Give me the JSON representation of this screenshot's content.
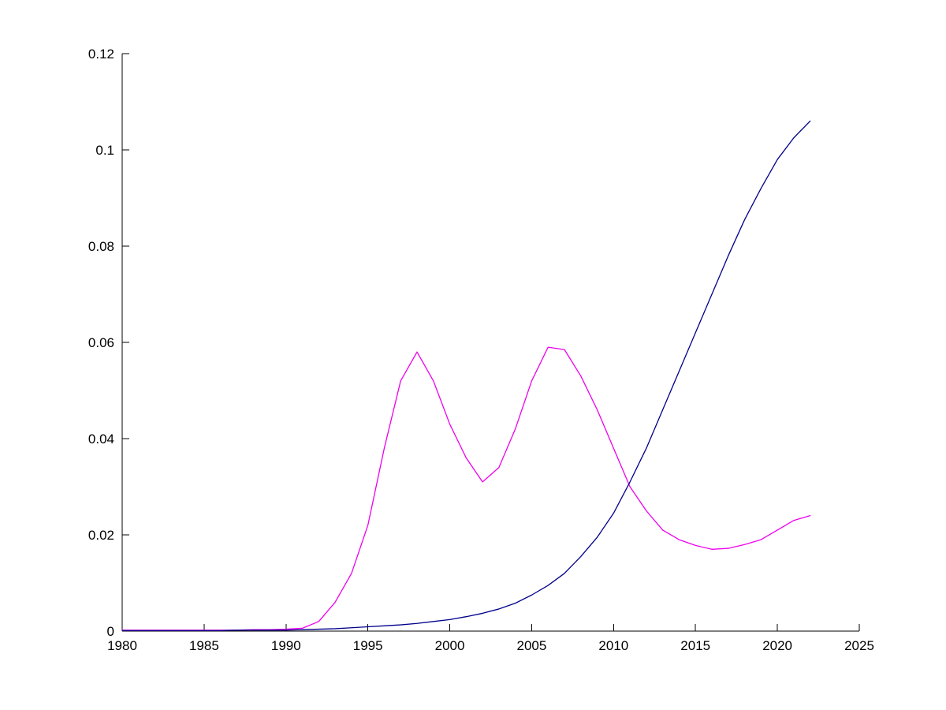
{
  "chart_data": {
    "type": "line",
    "title": "",
    "xlabel": "",
    "ylabel": "",
    "grid": false,
    "legend": "none",
    "xlim": [
      1980,
      2025
    ],
    "ylim": [
      0,
      0.12
    ],
    "xticks": [
      1980,
      1985,
      1990,
      1995,
      2000,
      2005,
      2010,
      2015,
      2020,
      2025
    ],
    "xtick_labels": [
      "1980",
      "1985",
      "1990",
      "1995",
      "2000",
      "2005",
      "2010",
      "2015",
      "2020",
      "2025"
    ],
    "yticks": [
      0,
      0.02,
      0.04,
      0.06,
      0.08,
      0.1,
      0.12
    ],
    "ytick_labels": [
      "0",
      "0.02",
      "0.04",
      "0.06",
      "0.08",
      "0.1",
      "0.12"
    ],
    "x": [
      1980,
      1981,
      1982,
      1983,
      1984,
      1985,
      1986,
      1987,
      1988,
      1989,
      1990,
      1991,
      1992,
      1993,
      1994,
      1995,
      1996,
      1997,
      1998,
      1999,
      2000,
      2001,
      2002,
      2003,
      2004,
      2005,
      2006,
      2007,
      2008,
      2009,
      2010,
      2011,
      2012,
      2013,
      2014,
      2015,
      2016,
      2017,
      2018,
      2019,
      2020,
      2021,
      2022
    ],
    "series": [
      {
        "name": "magenta-line",
        "color": "#ee00ee",
        "values": [
          0.0002,
          0.0002,
          0.0002,
          0.0002,
          0.0002,
          0.0002,
          0.0002,
          0.0002,
          0.0003,
          0.0003,
          0.0004,
          0.0006,
          0.002,
          0.006,
          0.012,
          0.022,
          0.038,
          0.052,
          0.058,
          0.052,
          0.043,
          0.036,
          0.031,
          0.034,
          0.042,
          0.052,
          0.059,
          0.0585,
          0.053,
          0.046,
          0.038,
          0.03,
          0.025,
          0.021,
          0.019,
          0.0178,
          0.017,
          0.0172,
          0.018,
          0.019,
          0.021,
          0.023,
          0.024
        ]
      },
      {
        "name": "blue-line",
        "color": "#00008b",
        "values": [
          0.0001,
          0.0001,
          0.0001,
          0.0001,
          0.0001,
          0.0001,
          0.0001,
          0.0002,
          0.0002,
          0.0002,
          0.0002,
          0.0003,
          0.0004,
          0.0005,
          0.0007,
          0.0009,
          0.0011,
          0.0013,
          0.0016,
          0.002,
          0.0024,
          0.003,
          0.0037,
          0.0046,
          0.0058,
          0.0075,
          0.0095,
          0.012,
          0.0155,
          0.0195,
          0.0245,
          0.031,
          0.038,
          0.046,
          0.054,
          0.062,
          0.07,
          0.078,
          0.0855,
          0.092,
          0.098,
          0.1025,
          0.106
        ]
      }
    ],
    "axis_color": "#000000",
    "background_color": "#ffffff"
  }
}
